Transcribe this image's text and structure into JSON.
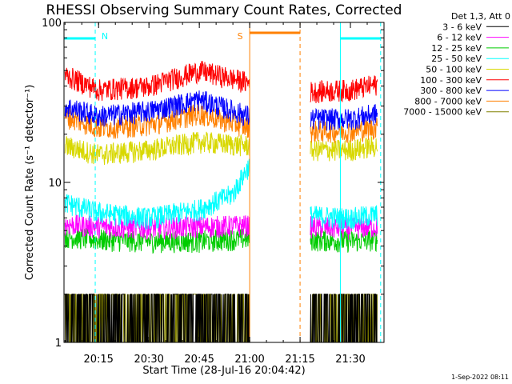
{
  "chart_data": {
    "type": "line",
    "title": "RHESSI Observing Summary Count Rates, Corrected",
    "xlabel": "Start Time (28-Jul-16 20:04:42)",
    "ylabel": "Corrected Count Rate (s⁻¹ detector⁻¹)",
    "ylog": true,
    "ylim": [
      1,
      100
    ],
    "xlim": [
      "20:04:42",
      "21:40:00"
    ],
    "x_ticks": [
      "20:15",
      "20:30",
      "20:45",
      "21:00",
      "21:15",
      "21:30"
    ],
    "y_ticks": [
      "1",
      "10",
      "100"
    ],
    "grid": false,
    "legend_position": "right",
    "legend_header": "Det 1,3, Att 0",
    "data_gaps": [
      [
        "21:00",
        "21:18"
      ]
    ],
    "annotations": [
      {
        "label": "N",
        "type": "night",
        "from": "20:04:42",
        "to": "20:14",
        "color": "#00ffff"
      },
      {
        "label": "S",
        "type": "saa",
        "from": "21:00",
        "to": "21:15",
        "color": "#ff8000"
      },
      {
        "label": "",
        "type": "night",
        "from": "21:27",
        "to": "21:39",
        "color": "#00ffff"
      }
    ],
    "series": [
      {
        "name": "3 - 6 keV",
        "color": "#000000",
        "x": [
          "20:05",
          "20:15",
          "20:30",
          "20:45",
          "21:00",
          "21:18",
          "21:30",
          "21:38"
        ],
        "values": [
          1.5,
          1.5,
          1.5,
          1.5,
          1.5,
          1.5,
          1.5,
          1.5
        ]
      },
      {
        "name": "6 - 12 keV",
        "color": "#ff00ff",
        "x": [
          "20:05",
          "20:15",
          "20:30",
          "20:45",
          "21:00",
          "21:18",
          "21:30",
          "21:38"
        ],
        "values": [
          5.5,
          5.3,
          5.2,
          5.3,
          5.4,
          5.3,
          5.2,
          5.3
        ]
      },
      {
        "name": "12 - 25 keV",
        "color": "#00cc00",
        "x": [
          "20:05",
          "20:15",
          "20:30",
          "20:45",
          "21:00",
          "21:18",
          "21:30",
          "21:38"
        ],
        "values": [
          4.6,
          4.4,
          4.3,
          4.3,
          4.5,
          4.4,
          4.3,
          4.4
        ]
      },
      {
        "name": "25 - 50 keV",
        "color": "#00ffff",
        "x": [
          "20:05",
          "20:15",
          "20:30",
          "20:45",
          "20:55",
          "21:00",
          "21:18",
          "21:30",
          "21:38"
        ],
        "values": [
          7.5,
          6.5,
          6.0,
          6.8,
          8.5,
          13.0,
          6.2,
          6.0,
          6.3
        ]
      },
      {
        "name": "50 - 100 keV",
        "color": "#d8d800",
        "x": [
          "20:05",
          "20:15",
          "20:30",
          "20:45",
          "21:00",
          "21:18",
          "21:30",
          "21:38"
        ],
        "values": [
          17,
          15,
          16,
          18,
          17,
          16,
          16,
          17
        ]
      },
      {
        "name": "100 - 300 keV",
        "color": "#ff0000",
        "x": [
          "20:05",
          "20:15",
          "20:30",
          "20:45",
          "21:00",
          "21:18",
          "21:30",
          "21:38"
        ],
        "values": [
          47,
          38,
          40,
          50,
          42,
          37,
          38,
          41
        ]
      },
      {
        "name": "300 - 800 keV",
        "color": "#0000ff",
        "x": [
          "20:05",
          "20:15",
          "20:30",
          "20:45",
          "21:00",
          "21:18",
          "21:30",
          "21:38"
        ],
        "values": [
          30,
          26,
          28,
          33,
          26,
          25,
          25,
          27
        ]
      },
      {
        "name": "800 - 7000 keV",
        "color": "#ff8000",
        "x": [
          "20:05",
          "20:15",
          "20:30",
          "20:45",
          "21:00",
          "21:18",
          "21:30",
          "21:38"
        ],
        "values": [
          26,
          22,
          23,
          27,
          22,
          21,
          21,
          22
        ]
      },
      {
        "name": "7000 - 15000 keV",
        "color": "#808000",
        "x": [
          "20:05",
          "20:15",
          "20:30",
          "20:45",
          "21:00",
          "21:18",
          "21:30",
          "21:38"
        ],
        "values": [
          1.5,
          1.5,
          1.5,
          1.5,
          1.5,
          1.5,
          1.5,
          1.5
        ]
      }
    ],
    "footer_timestamp": "1-Sep-2022 08:11"
  }
}
